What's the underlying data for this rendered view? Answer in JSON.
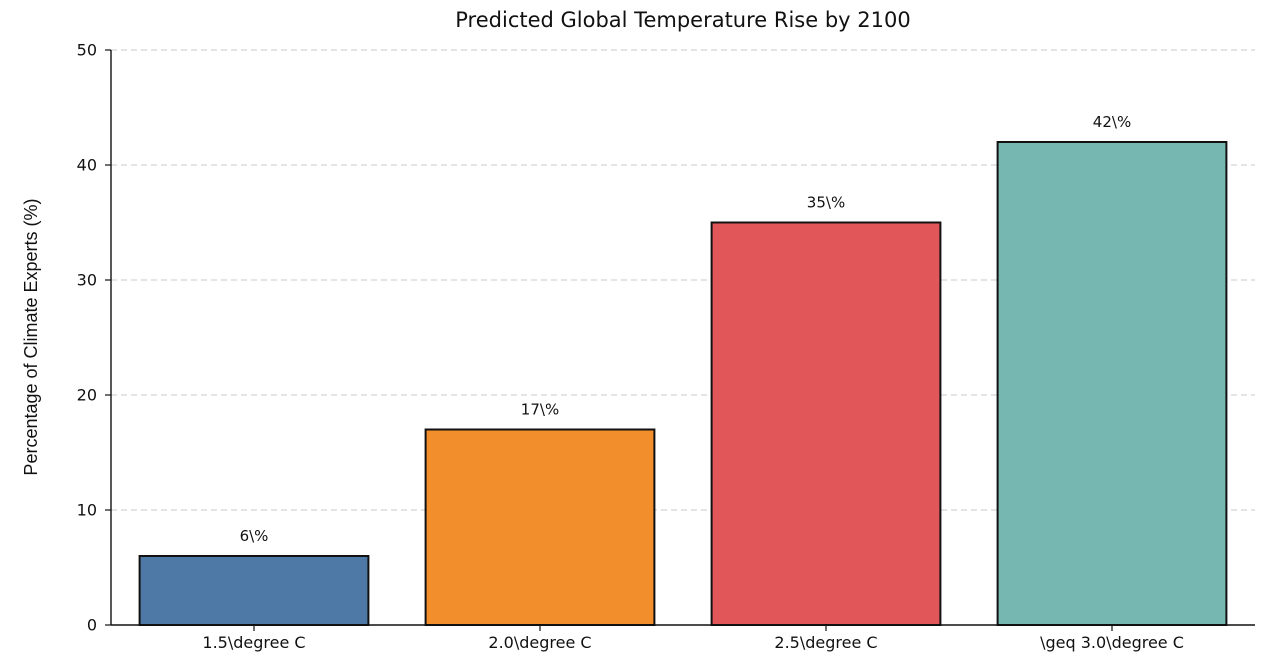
{
  "chart_data": {
    "type": "bar",
    "title": "Predicted Global Temperature Rise by 2100",
    "xlabel": "",
    "ylabel": "Percentage of Climate Experts (%)",
    "categories": [
      "1.5\\degree C",
      "2.0\\degree C",
      "2.5\\degree C",
      "\\geq 3.0\\degree C"
    ],
    "values": [
      6,
      17,
      35,
      42
    ],
    "value_labels": [
      "6\\%",
      "17\\%",
      "35\\%",
      "42\\%"
    ],
    "colors": [
      "#4E79A7",
      "#F28E2B",
      "#E15759",
      "#76B7B2"
    ],
    "edge_color": "#111111",
    "ylim": [
      0,
      50
    ],
    "yticks": [
      0,
      10,
      20,
      30,
      40,
      50
    ],
    "grid": "y-dashed"
  }
}
